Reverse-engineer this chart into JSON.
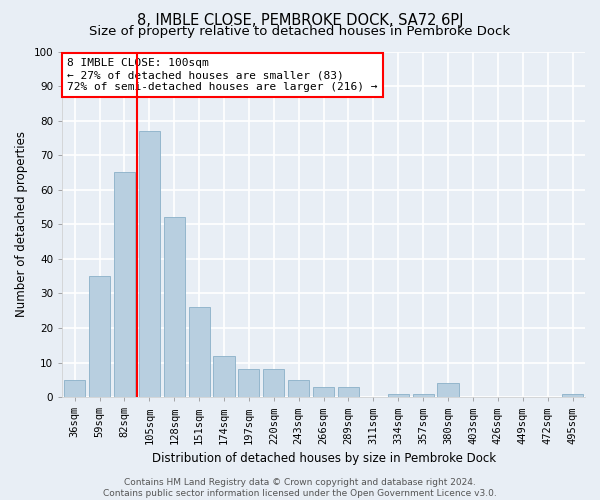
{
  "title": "8, IMBLE CLOSE, PEMBROKE DOCK, SA72 6PJ",
  "subtitle": "Size of property relative to detached houses in Pembroke Dock",
  "xlabel": "Distribution of detached houses by size in Pembroke Dock",
  "ylabel": "Number of detached properties",
  "categories": [
    "36sqm",
    "59sqm",
    "82sqm",
    "105sqm",
    "128sqm",
    "151sqm",
    "174sqm",
    "197sqm",
    "220sqm",
    "243sqm",
    "266sqm",
    "289sqm",
    "311sqm",
    "334sqm",
    "357sqm",
    "380sqm",
    "403sqm",
    "426sqm",
    "449sqm",
    "472sqm",
    "495sqm"
  ],
  "values": [
    5,
    35,
    65,
    77,
    52,
    26,
    12,
    8,
    8,
    5,
    3,
    3,
    0,
    1,
    1,
    4,
    0,
    0,
    0,
    0,
    1
  ],
  "bar_color": "#b8cfe0",
  "bar_edge_color": "#8ab0c8",
  "background_color": "#e8eef5",
  "grid_color": "#ffffff",
  "vline_color": "red",
  "vline_x_index": 3,
  "annotation_text": "8 IMBLE CLOSE: 100sqm\n← 27% of detached houses are smaller (83)\n72% of semi-detached houses are larger (216) →",
  "annotation_box_color": "white",
  "annotation_box_edge_color": "red",
  "ylim": [
    0,
    100
  ],
  "yticks": [
    0,
    10,
    20,
    30,
    40,
    50,
    60,
    70,
    80,
    90,
    100
  ],
  "footnote": "Contains HM Land Registry data © Crown copyright and database right 2024.\nContains public sector information licensed under the Open Government Licence v3.0.",
  "title_fontsize": 10.5,
  "subtitle_fontsize": 9.5,
  "xlabel_fontsize": 8.5,
  "ylabel_fontsize": 8.5,
  "tick_fontsize": 7.5,
  "annotation_fontsize": 8,
  "footnote_fontsize": 6.5
}
